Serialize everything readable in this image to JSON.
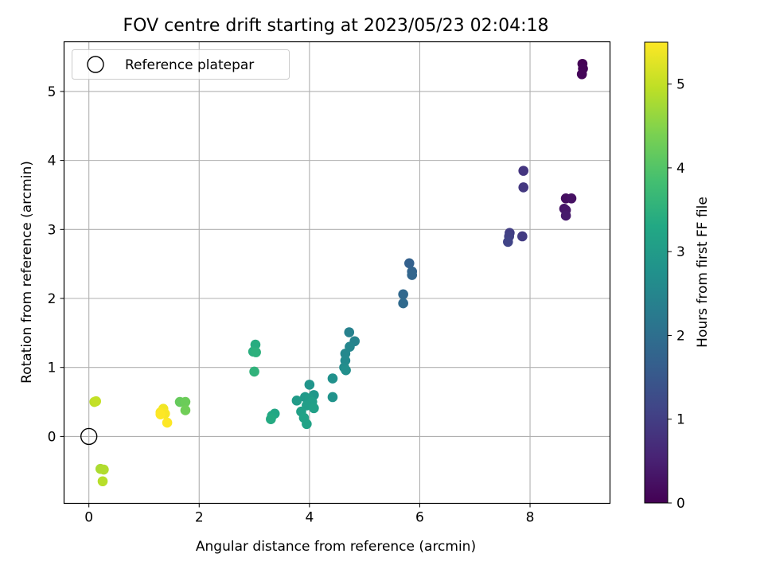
{
  "chart_data": {
    "type": "scatter",
    "title": "FOV centre drift starting at 2023/05/23 02:04:18",
    "xlabel": "Angular distance from reference (arcmin)",
    "ylabel": "Rotation from reference (arcmin)",
    "xlim": [
      -0.45,
      9.45
    ],
    "ylim": [
      -0.97,
      5.72
    ],
    "xticks": [
      0,
      2,
      4,
      6,
      8
    ],
    "xtick_labels": [
      "0",
      "2",
      "4",
      "6",
      "8"
    ],
    "yticks": [
      0,
      1,
      2,
      3,
      4,
      5
    ],
    "ytick_labels": [
      "0",
      "1",
      "2",
      "3",
      "4",
      "5"
    ],
    "grid": true,
    "legend": {
      "position": "top-left",
      "entries": [
        "Reference platepar"
      ]
    },
    "reference_point": {
      "name": "Reference platepar",
      "x": 0,
      "y": 0,
      "marker": "open-circle"
    },
    "colorbar": {
      "label": "Hours from first FF file",
      "range": [
        0,
        5.5
      ],
      "ticks": [
        0,
        1,
        2,
        3,
        4,
        5
      ],
      "tick_labels": [
        "0",
        "1",
        "2",
        "3",
        "4",
        "5"
      ],
      "colormap": "viridis"
    },
    "series": [
      {
        "color_by": "hours",
        "points": [
          {
            "x": 8.95,
            "y": 5.4,
            "c": 0.02
          },
          {
            "x": 8.96,
            "y": 5.33,
            "c": 0.05
          },
          {
            "x": 8.94,
            "y": 5.25,
            "c": 0.08
          },
          {
            "x": 8.65,
            "y": 3.45,
            "c": 0.2
          },
          {
            "x": 8.75,
            "y": 3.45,
            "c": 0.25
          },
          {
            "x": 8.62,
            "y": 3.3,
            "c": 0.3
          },
          {
            "x": 8.65,
            "y": 3.28,
            "c": 0.35
          },
          {
            "x": 8.65,
            "y": 3.2,
            "c": 0.4
          },
          {
            "x": 7.88,
            "y": 3.85,
            "c": 0.85
          },
          {
            "x": 7.88,
            "y": 3.61,
            "c": 0.9
          },
          {
            "x": 7.86,
            "y": 2.9,
            "c": 0.95
          },
          {
            "x": 7.63,
            "y": 2.95,
            "c": 1.0
          },
          {
            "x": 7.62,
            "y": 2.9,
            "c": 1.05
          },
          {
            "x": 7.6,
            "y": 2.82,
            "c": 1.1
          },
          {
            "x": 5.81,
            "y": 2.51,
            "c": 1.7
          },
          {
            "x": 5.86,
            "y": 2.39,
            "c": 1.75
          },
          {
            "x": 5.86,
            "y": 2.34,
            "c": 1.8
          },
          {
            "x": 5.7,
            "y": 2.06,
            "c": 1.85
          },
          {
            "x": 5.7,
            "y": 1.93,
            "c": 1.9
          },
          {
            "x": 4.72,
            "y": 1.51,
            "c": 2.4
          },
          {
            "x": 4.82,
            "y": 1.38,
            "c": 2.45
          },
          {
            "x": 4.73,
            "y": 1.3,
            "c": 2.5
          },
          {
            "x": 4.65,
            "y": 1.2,
            "c": 2.55
          },
          {
            "x": 4.65,
            "y": 1.1,
            "c": 2.6
          },
          {
            "x": 4.63,
            "y": 1.0,
            "c": 2.65
          },
          {
            "x": 4.66,
            "y": 0.96,
            "c": 2.7
          },
          {
            "x": 4.42,
            "y": 0.84,
            "c": 2.75
          },
          {
            "x": 4.42,
            "y": 0.57,
            "c": 2.8
          },
          {
            "x": 4.0,
            "y": 0.75,
            "c": 2.85
          },
          {
            "x": 4.08,
            "y": 0.6,
            "c": 2.9
          },
          {
            "x": 3.92,
            "y": 0.57,
            "c": 2.95
          },
          {
            "x": 4.0,
            "y": 0.55,
            "c": 3.0
          },
          {
            "x": 3.77,
            "y": 0.52,
            "c": 3.0
          },
          {
            "x": 4.05,
            "y": 0.5,
            "c": 3.05
          },
          {
            "x": 3.95,
            "y": 0.45,
            "c": 3.05
          },
          {
            "x": 4.08,
            "y": 0.41,
            "c": 3.1
          },
          {
            "x": 3.85,
            "y": 0.36,
            "c": 3.1
          },
          {
            "x": 3.9,
            "y": 0.27,
            "c": 3.15
          },
          {
            "x": 3.95,
            "y": 0.18,
            "c": 3.15
          },
          {
            "x": 3.37,
            "y": 0.33,
            "c": 3.25
          },
          {
            "x": 3.32,
            "y": 0.3,
            "c": 3.3
          },
          {
            "x": 3.3,
            "y": 0.25,
            "c": 3.35
          },
          {
            "x": 3.02,
            "y": 1.33,
            "c": 3.4
          },
          {
            "x": 2.98,
            "y": 1.23,
            "c": 3.45
          },
          {
            "x": 3.03,
            "y": 1.22,
            "c": 3.5
          },
          {
            "x": 3.0,
            "y": 0.94,
            "c": 3.55
          },
          {
            "x": 1.65,
            "y": 0.5,
            "c": 4.2
          },
          {
            "x": 1.75,
            "y": 0.5,
            "c": 4.25
          },
          {
            "x": 1.75,
            "y": 0.38,
            "c": 4.3
          },
          {
            "x": 0.1,
            "y": 0.5,
            "c": 4.95
          },
          {
            "x": 0.13,
            "y": 0.51,
            "c": 5.0
          },
          {
            "x": 0.21,
            "y": -0.47,
            "c": 4.8
          },
          {
            "x": 0.27,
            "y": -0.48,
            "c": 4.85
          },
          {
            "x": 0.25,
            "y": -0.65,
            "c": 4.9
          },
          {
            "x": 1.35,
            "y": 0.4,
            "c": 5.4
          },
          {
            "x": 1.3,
            "y": 0.35,
            "c": 5.45
          },
          {
            "x": 1.38,
            "y": 0.33,
            "c": 5.45
          },
          {
            "x": 1.3,
            "y": 0.32,
            "c": 5.5
          },
          {
            "x": 1.42,
            "y": 0.2,
            "c": 5.5
          }
        ]
      }
    ]
  }
}
